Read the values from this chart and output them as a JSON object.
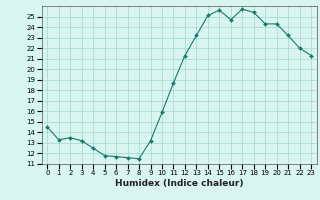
{
  "xlabel": "Humidex (Indice chaleur)",
  "ylabel": "",
  "x": [
    0,
    1,
    2,
    3,
    4,
    5,
    6,
    7,
    8,
    9,
    10,
    11,
    12,
    13,
    14,
    15,
    16,
    17,
    18,
    19,
    20,
    21,
    22,
    23
  ],
  "y": [
    14.5,
    13.3,
    13.5,
    13.2,
    12.5,
    11.8,
    11.7,
    11.6,
    11.5,
    13.2,
    15.9,
    18.7,
    21.3,
    23.2,
    25.1,
    25.6,
    24.7,
    25.7,
    25.4,
    24.3,
    24.3,
    23.2,
    22.0,
    21.3
  ],
  "line_color": "#1a7a6e",
  "marker": "D",
  "marker_size": 2.0,
  "line_width": 0.8,
  "background_color": "#d8f5f0",
  "grid_color": "#a0d8d0",
  "ylim": [
    11,
    26
  ],
  "xlim": [
    -0.5,
    23.5
  ],
  "yticks": [
    11,
    12,
    13,
    14,
    15,
    16,
    17,
    18,
    19,
    20,
    21,
    22,
    23,
    24,
    25
  ],
  "xticks": [
    0,
    1,
    2,
    3,
    4,
    5,
    6,
    7,
    8,
    9,
    10,
    11,
    12,
    13,
    14,
    15,
    16,
    17,
    18,
    19,
    20,
    21,
    22,
    23
  ],
  "tick_fontsize": 5.0,
  "xlabel_fontsize": 6.5,
  "title_fontsize": 6
}
